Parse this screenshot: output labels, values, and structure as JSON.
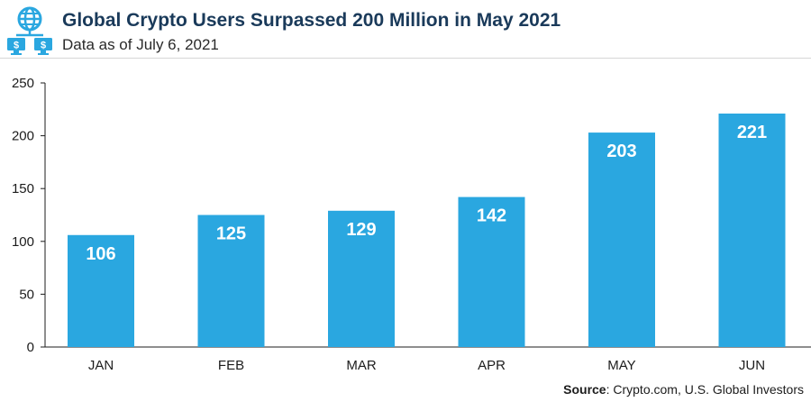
{
  "header": {
    "title": "Global Crypto Users Surpassed 200 Million in May 2021",
    "subtitle": "Data as of July 6, 2021"
  },
  "logo": {
    "icon": "globe-dollar-monitors-icon",
    "color": "#2aa7e0"
  },
  "source": {
    "label": "Source",
    "text": ": Crypto.com, U.S. Global Investors"
  },
  "colors": {
    "bar": "#2aa7e0",
    "bar_label": "#ffffff",
    "axis": "#1c1c1c"
  },
  "chart_data": {
    "type": "bar",
    "categories": [
      "JAN",
      "FEB",
      "MAR",
      "APR",
      "MAY",
      "JUN"
    ],
    "values": [
      106,
      125,
      129,
      142,
      203,
      221
    ],
    "data_labels": [
      "106",
      "125",
      "129",
      "142",
      "203",
      "221"
    ],
    "title": "",
    "xlabel": "",
    "ylabel": "",
    "ylim": [
      0,
      250
    ],
    "yticks": [
      0,
      50,
      100,
      150,
      200,
      250
    ],
    "grid": false,
    "legend": "none"
  }
}
